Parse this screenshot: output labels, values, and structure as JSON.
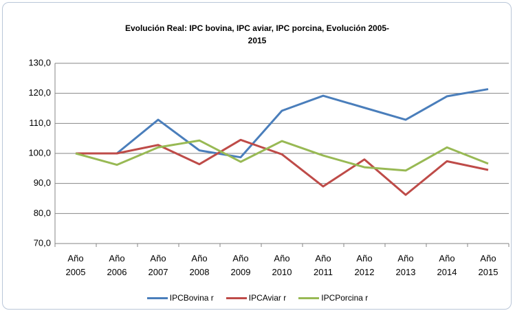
{
  "chart_data": {
    "type": "line",
    "title": "Evolución Real: IPC bovina, IPC aviar, IPC porcina, Evolución 2005-2015",
    "categories": [
      "Año 2005",
      "Año 2006",
      "Año 2007",
      "Año 2008",
      "Año 2009",
      "Año 2010",
      "Año 2011",
      "Año 2012",
      "Año 2013",
      "Año 2014",
      "Año 2015"
    ],
    "series": [
      {
        "name": "IPCBovina r",
        "color": "#4a7ebb",
        "values": [
          100,
          100,
          111.2,
          101,
          98.7,
          114.2,
          119.2,
          115.2,
          111.2,
          119,
          121.4
        ]
      },
      {
        "name": "IPCAviar r",
        "color": "#be4b48",
        "values": [
          100,
          100,
          102.8,
          96.4,
          104.5,
          99.7,
          89,
          98,
          86.2,
          97.4,
          94.5
        ]
      },
      {
        "name": "IPCPorcina r",
        "color": "#98b954",
        "values": [
          100,
          96.2,
          102,
          104.3,
          97.2,
          104.1,
          99.3,
          95.4,
          94.3,
          102,
          96.6
        ]
      }
    ],
    "ylim": [
      70,
      130
    ],
    "yticks": [
      {
        "value": 70,
        "label": "70,0"
      },
      {
        "value": 80,
        "label": "80,0"
      },
      {
        "value": 90,
        "label": "90,0"
      },
      {
        "value": 100,
        "label": "100,0"
      },
      {
        "value": 110,
        "label": "110,0"
      },
      {
        "value": 120,
        "label": "120,0"
      },
      {
        "value": 130,
        "label": "130,0"
      }
    ],
    "grid": true,
    "legend": "bottom"
  }
}
